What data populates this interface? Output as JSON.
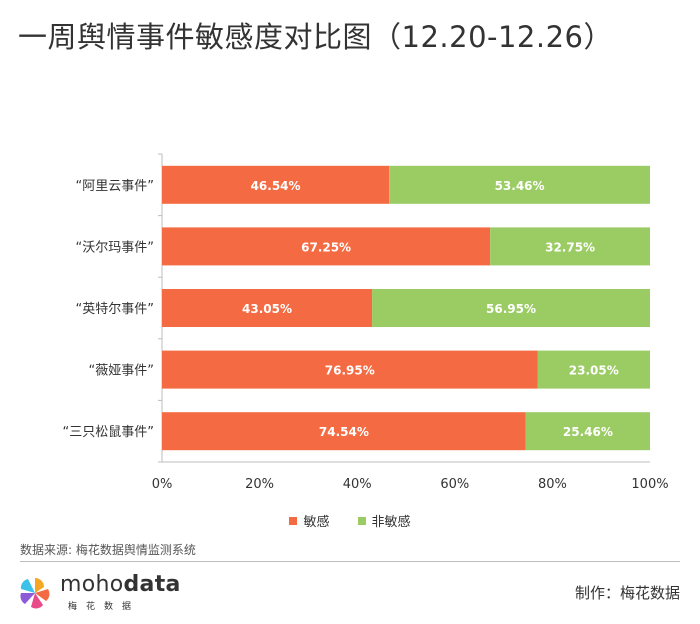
{
  "title": "一周舆情事件敏感度对比图（12.20-12.26）",
  "chart_data": {
    "type": "bar",
    "orientation": "horizontal",
    "stacked": true,
    "categories": [
      "“阿里云事件”",
      "“沃尔玛事件”",
      "“英特尔事件”",
      "“薇娅事件”",
      "“三只松鼠事件”"
    ],
    "series": [
      {
        "name": "敏感",
        "color": "#f46b43",
        "values": [
          46.54,
          67.25,
          43.05,
          76.95,
          74.54
        ],
        "labels": [
          "46.54%",
          "67.25%",
          "43.05%",
          "76.95%",
          "74.54%"
        ]
      },
      {
        "name": "非敏感",
        "color": "#9bcc64",
        "values": [
          53.46,
          32.75,
          56.95,
          23.05,
          25.46
        ],
        "labels": [
          "53.46%",
          "32.75%",
          "56.95%",
          "23.05%",
          "25.46%"
        ]
      }
    ],
    "xlim": [
      0,
      100
    ],
    "xticks": [
      "0%",
      "20%",
      "40%",
      "60%",
      "80%",
      "100%"
    ],
    "grid": false,
    "legend_position": "bottom"
  },
  "source": "数据来源: 梅花数据舆情监测系统",
  "logo": {
    "name_light": "moho",
    "name_bold": "data",
    "subtitle": "梅花数据"
  },
  "credit": "制作：梅花数据"
}
